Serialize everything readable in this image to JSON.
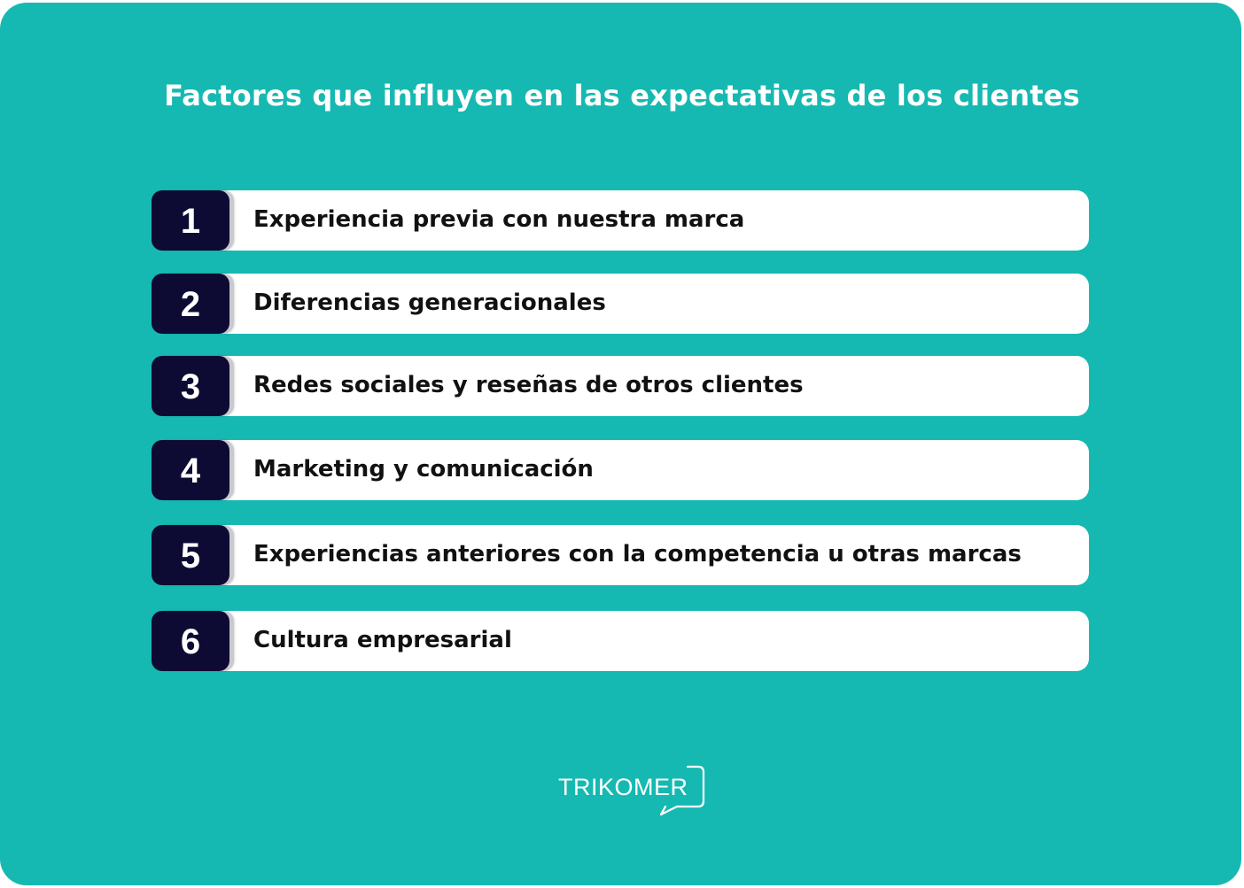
{
  "title": "Factores que influyen en las expectativas de los clientes",
  "factors": [
    {
      "number": "1",
      "label": "Experiencia previa con nuestra marca"
    },
    {
      "number": "2",
      "label": "Diferencias generacionales"
    },
    {
      "number": "3",
      "label": "Redes sociales y reseñas de otros clientes"
    },
    {
      "number": "4",
      "label": "Marketing y comunicación"
    },
    {
      "number": "5",
      "label": "Experiencias anteriores con la competencia u otras marcas"
    },
    {
      "number": "6",
      "label": "Cultura empresarial"
    }
  ],
  "logo": {
    "name": "TRIKOMER",
    "icon": "speech-bubble-icon"
  },
  "colors": {
    "background": "#16b9b2",
    "number_box": "#0d0b33",
    "row": "#ffffff",
    "text": "#111111"
  }
}
